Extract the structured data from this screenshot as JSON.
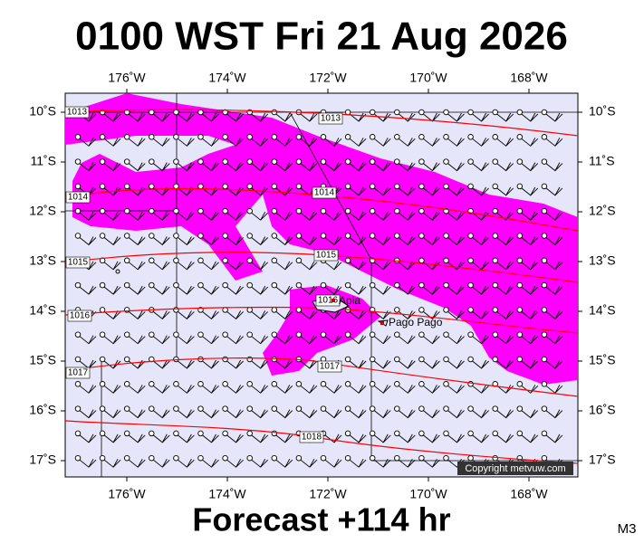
{
  "header": {
    "title": "0100 WST Fri 21 Aug 2026"
  },
  "map": {
    "lon_ticks": [
      {
        "value": -176,
        "label": "176˚W"
      },
      {
        "value": -174,
        "label": "174˚W"
      },
      {
        "value": -172,
        "label": "172˚W"
      },
      {
        "value": -170,
        "label": "170˚W"
      },
      {
        "value": -168,
        "label": "168˚W"
      }
    ],
    "lat_ticks": [
      {
        "value": -10,
        "label": "10˚S"
      },
      {
        "value": -11,
        "label": "11˚S"
      },
      {
        "value": -12,
        "label": "12˚S"
      },
      {
        "value": -13,
        "label": "13˚S"
      },
      {
        "value": -14,
        "label": "14˚S"
      },
      {
        "value": -15,
        "label": "15˚S"
      },
      {
        "value": -16,
        "label": "16˚S"
      },
      {
        "value": -17,
        "label": "17˚S"
      }
    ],
    "isobar_labels": [
      "1013",
      "1013",
      "1014",
      "1014",
      "1015",
      "1015",
      "1016",
      "1016",
      "1017",
      "1017",
      "1018"
    ],
    "places": [
      "Apia",
      "Pago Pago"
    ],
    "copyright": "Copyright metvuw.com"
  },
  "footer": {
    "forecast": "Forecast +114 hr",
    "model": "M3"
  }
}
